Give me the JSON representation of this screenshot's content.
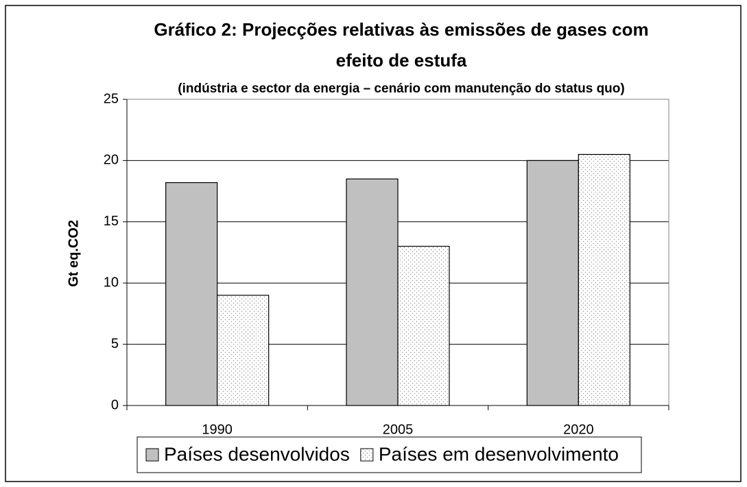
{
  "chart_data": {
    "type": "bar",
    "title": [
      "Gráfico 2: Projecções relativas às emissões de gases com",
      "efeito de estufa"
    ],
    "subtitle": "(indústria e sector da energia – cenário com manutenção do status quo)",
    "y_label": "Gt eq.CO2",
    "categories": [
      "1990",
      "2005",
      "2020"
    ],
    "series": [
      {
        "name": "Países desenvolvidos",
        "color": "#c0c0c0",
        "values": [
          18.2,
          18.5,
          20
        ]
      },
      {
        "name": "Países em desenvolvimento",
        "color": "#ffffff",
        "pattern": "dots",
        "values": [
          9,
          13,
          20.5
        ]
      }
    ],
    "ylim": [
      0,
      25
    ],
    "yticks": [
      0,
      5,
      10,
      15,
      20,
      25
    ],
    "grid": true,
    "legend": "bottom"
  }
}
